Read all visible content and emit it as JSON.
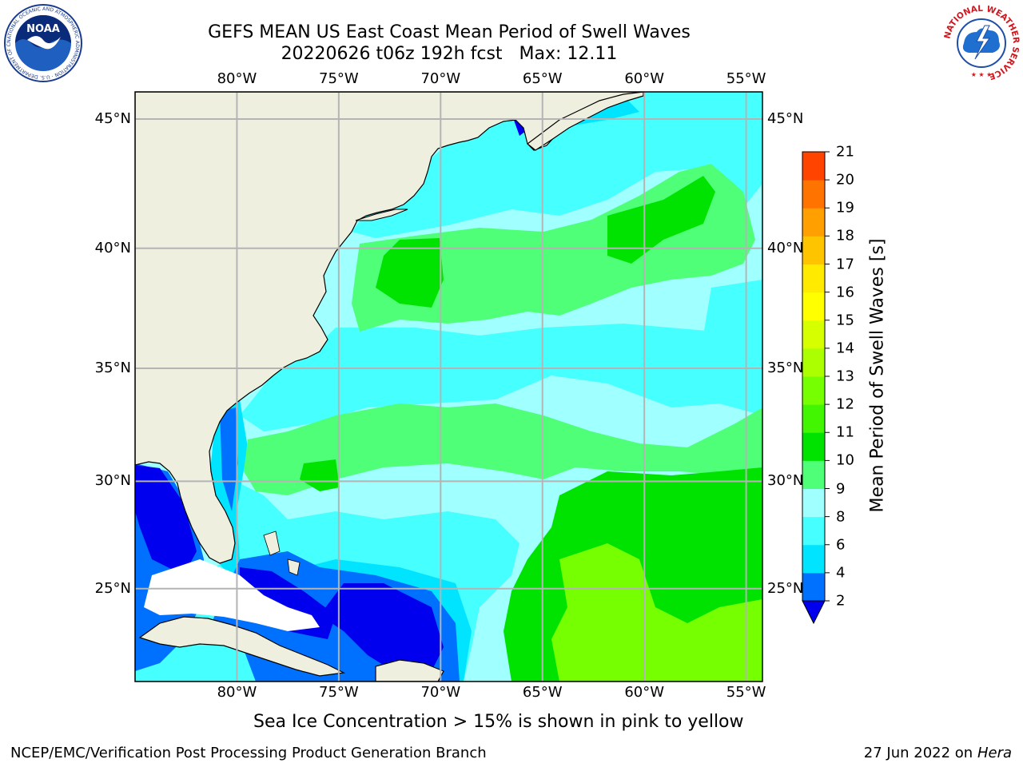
{
  "title": {
    "line1": "GEFS MEAN US East Coast Mean Period of Swell Waves",
    "line2": "20220626 t06z 192h fcst",
    "max": "Max: 12.11"
  },
  "axes": {
    "lon_labels": [
      "80°W",
      "75°W",
      "70°W",
      "65°W",
      "60°W",
      "55°W"
    ],
    "lat_labels": [
      "45°N",
      "40°N",
      "35°N",
      "30°N",
      "25°N"
    ],
    "lon_values": [
      -80,
      -75,
      -70,
      -65,
      -60,
      -55
    ],
    "lat_values": [
      45,
      40,
      35,
      30,
      25
    ],
    "lon_range": [
      -85,
      -54.2
    ],
    "lat_range": [
      20.5,
      46
    ]
  },
  "colorbar": {
    "label": "Mean Period of Swell Waves [s]",
    "ticks": [
      "2",
      "4",
      "6",
      "8",
      "9",
      "10",
      "11",
      "12",
      "13",
      "14",
      "15",
      "16",
      "17",
      "18",
      "19",
      "20",
      "21"
    ],
    "colors": [
      "#0070ff",
      "#00e4ff",
      "#46ffff",
      "#a0ffff",
      "#50ff78",
      "#00e300",
      "#42f500",
      "#76ff00",
      "#acff00",
      "#d6ff00",
      "#ffff00",
      "#ffea00",
      "#ffc400",
      "#ff9f00",
      "#ff7300",
      "#ff4400",
      "#ff0000"
    ],
    "under_color": "#0000ee"
  },
  "colors": {
    "land": "#efefdf",
    "grid": "#b4b4b4",
    "deep_blue": "#0000ee",
    "blue": "#0070ff",
    "cyan": "#00e4ff",
    "light_cyan": "#46ffff",
    "pale_cyan": "#a0ffff",
    "light_green": "#50ff78",
    "green": "#00e300",
    "yellow_green": "#76ff00"
  },
  "note": "Sea Ice Concentration > 15% is shown in pink to yellow",
  "footer": {
    "left": "NCEP/EMC/Verification Post Processing Product Generation Branch",
    "right_date": "27 Jun 2022 on",
    "right_host": "Hera"
  },
  "logos": {
    "noaa_text": "NOAA",
    "noaa_ring": "NATIONAL OCEANIC AND ATMOSPHERIC ADMINISTRATION · U.S. DEPARTMENT OF COMMERCE",
    "nws_ring": "NATIONAL WEATHER SERVICE"
  }
}
